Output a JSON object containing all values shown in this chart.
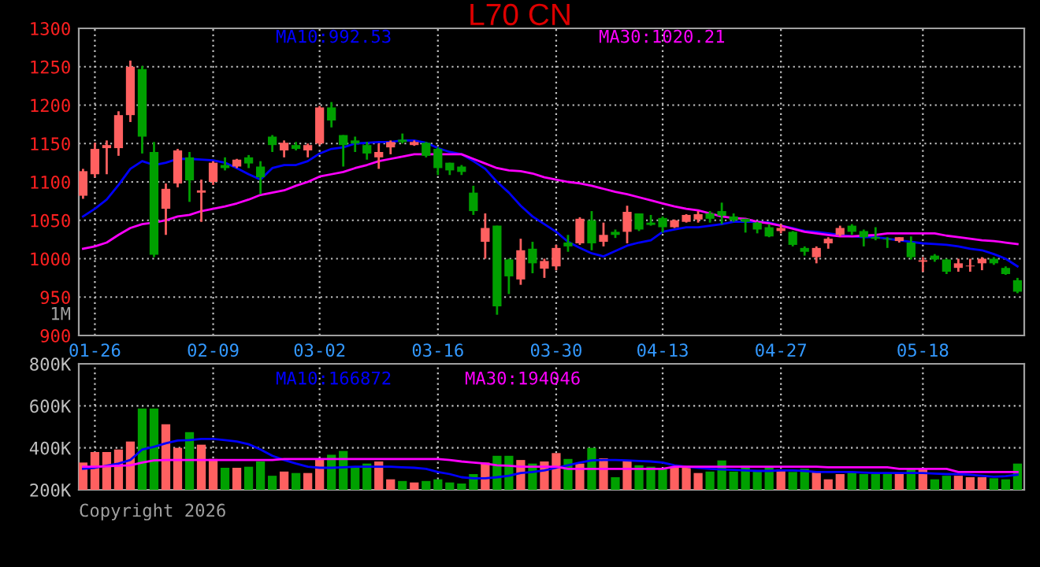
{
  "chart_data": [
    {
      "type": "candlestick",
      "title": "L70 CN",
      "categories": [
        null,
        "01-26",
        null,
        null,
        null,
        null,
        null,
        null,
        null,
        null,
        null,
        "02-09",
        null,
        null,
        null,
        null,
        null,
        null,
        null,
        null,
        "03-02",
        null,
        null,
        null,
        null,
        null,
        null,
        null,
        null,
        null,
        "03-16",
        null,
        null,
        null,
        null,
        null,
        null,
        null,
        null,
        null,
        "03-30",
        null,
        null,
        null,
        null,
        null,
        null,
        null,
        null,
        "04-13",
        null,
        null,
        null,
        null,
        null,
        null,
        null,
        null,
        null,
        "04-27",
        null,
        null,
        null,
        null,
        null,
        null,
        null,
        null,
        null,
        null,
        null,
        "05-18",
        null,
        null,
        null,
        null,
        null,
        null,
        null,
        null
      ],
      "ohlc": [
        [
          1082,
          1117,
          1078,
          1114
        ],
        [
          1110,
          1151,
          1106,
          1143
        ],
        [
          1144,
          1154,
          1110,
          1148
        ],
        [
          1144,
          1192,
          1134,
          1187
        ],
        [
          1187,
          1258,
          1178,
          1250
        ],
        [
          1247,
          1251,
          1137,
          1159
        ],
        [
          1139,
          1152,
          1002,
          1005
        ],
        [
          1065,
          1098,
          1031,
          1091
        ],
        [
          1098,
          1143,
          1093,
          1141
        ],
        [
          1132,
          1139,
          1074,
          1102
        ],
        [
          1086,
          1103,
          1048,
          1089
        ],
        [
          1100,
          1127,
          1096,
          1125
        ],
        [
          1122,
          1132,
          1115,
          1118
        ],
        [
          1120,
          1130,
          1118,
          1129
        ],
        [
          1132,
          1135,
          1118,
          1124
        ],
        [
          1120,
          1127,
          1084,
          1106
        ],
        [
          1159,
          1161,
          1139,
          1148
        ],
        [
          1141,
          1154,
          1132,
          1151
        ],
        [
          1148,
          1152,
          1141,
          1143
        ],
        [
          1141,
          1150,
          1132,
          1148
        ],
        [
          1150,
          1199,
          1148,
          1197
        ],
        [
          1197,
          1204,
          1171,
          1180
        ],
        [
          1161,
          1161,
          1120,
          1148
        ],
        [
          1154,
          1159,
          1139,
          1150
        ],
        [
          1148,
          1152,
          1129,
          1137
        ],
        [
          1132,
          1150,
          1117,
          1139
        ],
        [
          1145,
          1154,
          1136,
          1152
        ],
        [
          1155,
          1163,
          1150,
          1152
        ],
        [
          1148,
          1154,
          1147,
          1152
        ],
        [
          1151,
          1152,
          1132,
          1134
        ],
        [
          1143,
          1145,
          1109,
          1118
        ],
        [
          1125,
          1125,
          1109,
          1115
        ],
        [
          1120,
          1122,
          1109,
          1113
        ],
        [
          1086,
          1095,
          1057,
          1062
        ],
        [
          1022,
          1059,
          1000,
          1040
        ],
        [
          1043,
          1043,
          927,
          938
        ],
        [
          999,
          1000,
          954,
          977
        ],
        [
          973,
          1026,
          966,
          1011
        ],
        [
          1013,
          1022,
          981,
          994
        ],
        [
          987,
          1000,
          975,
          997
        ],
        [
          990,
          1018,
          985,
          1014
        ],
        [
          1021,
          1031,
          1009,
          1016
        ],
        [
          1020,
          1054,
          1018,
          1052
        ],
        [
          1050,
          1062,
          1011,
          1020
        ],
        [
          1022,
          1047,
          1016,
          1031
        ],
        [
          1035,
          1038,
          1027,
          1031
        ],
        [
          1035,
          1069,
          1020,
          1061
        ],
        [
          1059,
          1059,
          1036,
          1038
        ],
        [
          1047,
          1057,
          1043,
          1044
        ],
        [
          1053,
          1055,
          1034,
          1041
        ],
        [
          1041,
          1051,
          1040,
          1050
        ],
        [
          1048,
          1058,
          1047,
          1057
        ],
        [
          1051,
          1062,
          1047,
          1058
        ],
        [
          1059,
          1062,
          1047,
          1052
        ],
        [
          1062,
          1073,
          1045,
          1056
        ],
        [
          1055,
          1059,
          1048,
          1050
        ],
        [
          1052,
          1052,
          1034,
          1048
        ],
        [
          1047,
          1048,
          1033,
          1038
        ],
        [
          1041,
          1045,
          1028,
          1029
        ],
        [
          1036,
          1045,
          1033,
          1040
        ],
        [
          1035,
          1036,
          1016,
          1018
        ],
        [
          1014,
          1016,
          1004,
          1009
        ],
        [
          1002,
          1016,
          994,
          1014
        ],
        [
          1020,
          1028,
          1013,
          1026
        ],
        [
          1031,
          1043,
          1029,
          1040
        ],
        [
          1043,
          1045,
          1031,
          1035
        ],
        [
          1036,
          1038,
          1016,
          1028
        ],
        [
          1028,
          1041,
          1024,
          1026
        ],
        [
          1026,
          1028,
          1014,
          1025
        ],
        [
          1023,
          1028,
          1021,
          1028
        ],
        [
          1021,
          1029,
          999,
          1002
        ],
        [
          996,
          1002,
          983,
          998
        ],
        [
          1004,
          1006,
          996,
          999
        ],
        [
          999,
          1000,
          980,
          983
        ],
        [
          988,
          1000,
          983,
          994
        ],
        [
          990,
          1000,
          983,
          991
        ],
        [
          994,
          1002,
          985,
          1000
        ],
        [
          1000,
          1002,
          992,
          994
        ],
        [
          988,
          990,
          979,
          980
        ],
        [
          972,
          975,
          955,
          957
        ]
      ],
      "colors": [
        "#ff6060",
        "#ff6060",
        "#ff6060",
        "#ff6060",
        "#ff6060",
        "#00a000",
        "#00a000",
        "#ff6060",
        "#ff6060",
        "#00a000",
        "#ff6060",
        "#ff6060",
        "#00a000",
        "#ff6060",
        "#00a000",
        "#00a000",
        "#00a000",
        "#ff6060",
        "#00a000",
        "#ff6060",
        "#ff6060",
        "#00a000",
        "#00a000",
        "#00a000",
        "#00a000",
        "#ff6060",
        "#ff6060",
        "#00a000",
        "#ff6060",
        "#00a000",
        "#00a000",
        "#00a000",
        "#00a000",
        "#00a000",
        "#ff6060",
        "#00a000",
        "#00a000",
        "#ff6060",
        "#00a000",
        "#ff6060",
        "#ff6060",
        "#00a000",
        "#ff6060",
        "#00a000",
        "#ff6060",
        "#00a000",
        "#ff6060",
        "#00a000",
        "#00a000",
        "#00a000",
        "#ff6060",
        "#ff6060",
        "#ff6060",
        "#00a000",
        "#00a000",
        "#00a000",
        "#00a000",
        "#00a000",
        "#00a000",
        "#ff6060",
        "#00a000",
        "#00a000",
        "#ff6060",
        "#ff6060",
        "#ff6060",
        "#00a000",
        "#00a000",
        "#00a000",
        "#00a000",
        "#ff6060",
        "#00a000",
        "#ff6060",
        "#00a000",
        "#00a000",
        "#ff6060",
        "#ff6060",
        "#ff6060",
        "#00a000",
        "#00a000",
        "#00a000"
      ],
      "series": [
        {
          "type": "line",
          "name": "MA10:992.53",
          "color": "#0000ff",
          "values": [
            1055,
            1065,
            1077,
            1096,
            1117,
            1127,
            1122,
            1125,
            1130,
            1130,
            1129,
            1128,
            1125,
            1118,
            1110,
            1103,
            1118,
            1122,
            1122,
            1127,
            1137,
            1143,
            1145,
            1150,
            1151,
            1152,
            1152,
            1154,
            1154,
            1151,
            1144,
            1139,
            1136,
            1127,
            1117,
            1100,
            1086,
            1069,
            1055,
            1045,
            1035,
            1022,
            1014,
            1007,
            1003,
            1010,
            1017,
            1021,
            1024,
            1035,
            1038,
            1041,
            1041,
            1043,
            1045,
            1048,
            1048,
            1048,
            1047,
            1043,
            1040,
            1036,
            1035,
            1033,
            1031,
            1029,
            1028,
            1028,
            1026,
            1024,
            1022,
            1020,
            1019,
            1018,
            1016,
            1013,
            1011,
            1006,
            1000,
            990
          ]
        },
        {
          "type": "line",
          "name": "MA30:1020.21",
          "color": "#ff00ff",
          "values": [
            1013,
            1016,
            1021,
            1031,
            1040,
            1045,
            1047,
            1050,
            1055,
            1057,
            1062,
            1065,
            1068,
            1072,
            1077,
            1083,
            1086,
            1089,
            1095,
            1100,
            1107,
            1110,
            1113,
            1118,
            1122,
            1127,
            1130,
            1133,
            1136,
            1136,
            1136,
            1136,
            1136,
            1130,
            1124,
            1118,
            1115,
            1114,
            1111,
            1106,
            1103,
            1100,
            1098,
            1095,
            1091,
            1087,
            1084,
            1080,
            1076,
            1072,
            1068,
            1065,
            1063,
            1059,
            1055,
            1053,
            1052,
            1048,
            1046,
            1043,
            1039,
            1035,
            1033,
            1031,
            1029,
            1029,
            1030,
            1031,
            1033,
            1033,
            1033,
            1033,
            1033,
            1030,
            1028,
            1026,
            1024,
            1023,
            1021,
            1019
          ]
        }
      ],
      "ylim": [
        900,
        1300
      ],
      "yticks": [
        900,
        950,
        1000,
        1050,
        1100,
        1150,
        1200,
        1250,
        1300
      ],
      "grid": true,
      "annotations": [
        "1M"
      ]
    },
    {
      "type": "bar",
      "categories": [
        null,
        null,
        null,
        null,
        null,
        null,
        null,
        null,
        null,
        null,
        null,
        null,
        null,
        null,
        null,
        null,
        null,
        null,
        null,
        null,
        null,
        null,
        null,
        null,
        null,
        null,
        null,
        null,
        null,
        null,
        null,
        null,
        null,
        null,
        null,
        null,
        null,
        null,
        null,
        null,
        null,
        null,
        null,
        null,
        null,
        null,
        null,
        null,
        null,
        null,
        null,
        null,
        null,
        null,
        null,
        null,
        null,
        null,
        null,
        null,
        null,
        null,
        null,
        null,
        null,
        null,
        null,
        null,
        null,
        null,
        null,
        null,
        null,
        null,
        null,
        null,
        null,
        null,
        null,
        null
      ],
      "series": [
        {
          "type": "bar",
          "colors": [
            "#ff6060",
            "#ff6060",
            "#ff6060",
            "#ff6060",
            "#ff6060",
            "#00a000",
            "#00a000",
            "#ff6060",
            "#ff6060",
            "#00a000",
            "#ff6060",
            "#ff6060",
            "#00a000",
            "#ff6060",
            "#00a000",
            "#00a000",
            "#00a000",
            "#ff6060",
            "#00a000",
            "#ff6060",
            "#ff6060",
            "#00a000",
            "#00a000",
            "#00a000",
            "#00a000",
            "#ff6060",
            "#ff6060",
            "#00a000",
            "#ff6060",
            "#00a000",
            "#00a000",
            "#00a000",
            "#00a000",
            "#00a000",
            "#ff6060",
            "#00a000",
            "#00a000",
            "#ff6060",
            "#00a000",
            "#ff6060",
            "#ff6060",
            "#00a000",
            "#ff6060",
            "#00a000",
            "#ff6060",
            "#00a000",
            "#ff6060",
            "#00a000",
            "#00a000",
            "#00a000",
            "#ff6060",
            "#ff6060",
            "#ff6060",
            "#00a000",
            "#00a000",
            "#00a000",
            "#00a000",
            "#00a000",
            "#00a000",
            "#ff6060",
            "#00a000",
            "#00a000",
            "#ff6060",
            "#ff6060",
            "#ff6060",
            "#00a000",
            "#00a000",
            "#00a000",
            "#00a000",
            "#ff6060",
            "#00a000",
            "#ff6060",
            "#00a000",
            "#00a000",
            "#ff6060",
            "#ff6060",
            "#ff6060",
            "#00a000",
            "#00a000",
            "#00a000"
          ],
          "values": [
            330000,
            380000,
            380000,
            392000,
            430000,
            587000,
            587000,
            512000,
            400000,
            475000,
            415000,
            347000,
            305000,
            305000,
            310000,
            335000,
            267000,
            287000,
            280000,
            280000,
            347000,
            367000,
            385000,
            305000,
            325000,
            335000,
            250000,
            242000,
            235000,
            242000,
            250000,
            235000,
            230000,
            275000,
            330000,
            362000,
            362000,
            342000,
            325000,
            335000,
            375000,
            347000,
            325000,
            400000,
            350000,
            260000,
            340000,
            317000,
            310000,
            300000,
            310000,
            310000,
            280000,
            287000,
            340000,
            287000,
            315000,
            287000,
            305000,
            297000,
            285000,
            300000,
            287000,
            250000,
            275000,
            285000,
            275000,
            275000,
            275000,
            275000,
            305000,
            305000,
            250000,
            267000,
            267000,
            260000,
            260000,
            255000,
            250000,
            325000
          ]
        },
        {
          "type": "line",
          "name": "MA10:166872",
          "color": "#0000ff",
          "values": [
            300000,
            305000,
            315000,
            325000,
            342000,
            392000,
            405000,
            422000,
            435000,
            437000,
            442000,
            442000,
            437000,
            430000,
            417000,
            392000,
            362000,
            342000,
            325000,
            310000,
            305000,
            305000,
            307000,
            310000,
            310000,
            310000,
            310000,
            307000,
            305000,
            300000,
            285000,
            275000,
            260000,
            255000,
            255000,
            260000,
            267000,
            280000,
            285000,
            292000,
            305000,
            317000,
            330000,
            340000,
            342000,
            342000,
            340000,
            337000,
            335000,
            330000,
            317000,
            310000,
            305000,
            300000,
            297000,
            295000,
            292000,
            290000,
            290000,
            292000,
            292000,
            290000,
            285000,
            285000,
            285000,
            285000,
            282000,
            280000,
            280000,
            280000,
            280000,
            280000,
            277000,
            275000,
            275000,
            272000,
            267000,
            262000,
            265000,
            272000
          ]
        },
        {
          "type": "line",
          "name": "MA30:194046",
          "color": "#ff00ff",
          "values": [
            310000,
            310000,
            312000,
            315000,
            317000,
            330000,
            340000,
            342000,
            342000,
            342000,
            342000,
            342000,
            342000,
            342000,
            342000,
            342000,
            342000,
            347000,
            347000,
            347000,
            347000,
            347000,
            347000,
            347000,
            347000,
            347000,
            347000,
            347000,
            347000,
            347000,
            347000,
            342000,
            335000,
            330000,
            325000,
            317000,
            315000,
            310000,
            310000,
            310000,
            310000,
            300000,
            300000,
            300000,
            300000,
            300000,
            300000,
            300000,
            300000,
            300000,
            310000,
            310000,
            310000,
            310000,
            310000,
            310000,
            310000,
            310000,
            310000,
            310000,
            310000,
            310000,
            310000,
            307000,
            307000,
            307000,
            307000,
            307000,
            307000,
            300000,
            300000,
            300000,
            300000,
            300000,
            285000,
            285000,
            285000,
            285000,
            285000,
            285000
          ]
        }
      ],
      "ylim": [
        200000,
        800000
      ],
      "yticks": [
        {
          "value": 200000,
          "label": "200K"
        },
        {
          "value": 400000,
          "label": "400K"
        },
        {
          "value": 600000,
          "label": "600K"
        },
        {
          "value": 800000,
          "label": "800K"
        }
      ],
      "grid": true,
      "tick_labels": "y",
      "annotations": [
        "Copyright 2026"
      ]
    }
  ]
}
